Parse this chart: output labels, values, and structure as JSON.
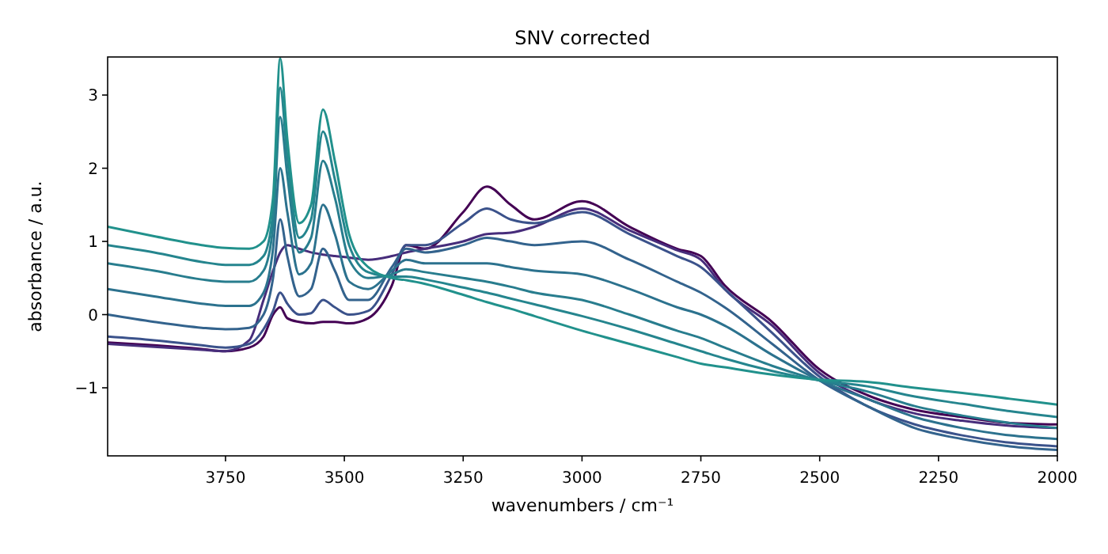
{
  "chart_data": {
    "type": "line",
    "title": "SNV corrected",
    "xlabel": "wavenumbers / cm⁻¹",
    "ylabel": "absorbance / a.u.",
    "x": [
      3998,
      3900,
      3800,
      3750,
      3700,
      3670,
      3650,
      3635,
      3620,
      3595,
      3570,
      3545,
      3520,
      3490,
      3450,
      3400,
      3370,
      3330,
      3250,
      3200,
      3150,
      3100,
      3000,
      2900,
      2800,
      2750,
      2700,
      2600,
      2500,
      2400,
      2300,
      2200,
      2100,
      2000
    ],
    "xlim": [
      3998,
      2000
    ],
    "xticks": [
      3750,
      3500,
      3250,
      3000,
      2750,
      2500,
      2250,
      2000
    ],
    "ylim": [
      -1.93,
      3.52
    ],
    "yticks": [
      {
        "value": -1,
        "label": "−1"
      },
      0,
      1,
      2,
      3
    ],
    "series": [
      {
        "color": "#440154",
        "values": [
          -0.38,
          -0.42,
          -0.47,
          -0.5,
          -0.45,
          -0.3,
          0.0,
          0.1,
          -0.05,
          -0.1,
          -0.12,
          -0.1,
          -0.1,
          -0.12,
          -0.05,
          0.4,
          0.95,
          0.9,
          1.4,
          1.75,
          1.5,
          1.3,
          1.55,
          1.2,
          0.9,
          0.8,
          0.4,
          -0.1,
          -0.75,
          -1.1,
          -1.3,
          -1.4,
          -1.48,
          -1.5
        ]
      },
      {
        "color": "#472d7b",
        "values": [
          -0.4,
          -0.44,
          -0.48,
          -0.5,
          -0.35,
          0.2,
          0.6,
          0.85,
          0.95,
          0.9,
          0.85,
          0.82,
          0.8,
          0.78,
          0.75,
          0.8,
          0.85,
          0.9,
          1.0,
          1.1,
          1.12,
          1.2,
          1.45,
          1.15,
          0.88,
          0.75,
          0.35,
          -0.15,
          -0.8,
          -1.15,
          -1.35,
          -1.45,
          -1.52,
          -1.55
        ]
      },
      {
        "color": "#3b528b",
        "values": [
          -0.3,
          -0.35,
          -0.42,
          -0.45,
          -0.4,
          -0.2,
          0.05,
          0.3,
          0.15,
          0.0,
          0.02,
          0.2,
          0.1,
          0.0,
          0.05,
          0.55,
          0.95,
          0.95,
          1.25,
          1.45,
          1.3,
          1.25,
          1.4,
          1.1,
          0.8,
          0.65,
          0.35,
          -0.25,
          -0.85,
          -1.25,
          -1.5,
          -1.65,
          -1.75,
          -1.8
        ]
      },
      {
        "color": "#33638d",
        "values": [
          0.0,
          -0.1,
          -0.18,
          -0.2,
          -0.18,
          0.0,
          0.5,
          1.3,
          0.8,
          0.25,
          0.35,
          0.9,
          0.6,
          0.2,
          0.2,
          0.65,
          0.9,
          0.85,
          0.95,
          1.05,
          1.0,
          0.95,
          1.0,
          0.75,
          0.45,
          0.3,
          0.1,
          -0.4,
          -0.9,
          -1.25,
          -1.55,
          -1.7,
          -1.8,
          -1.85
        ]
      },
      {
        "color": "#2c728e",
        "values": [
          0.35,
          0.25,
          0.15,
          0.12,
          0.12,
          0.3,
          0.9,
          2.0,
          1.4,
          0.55,
          0.7,
          1.5,
          1.1,
          0.45,
          0.35,
          0.6,
          0.75,
          0.7,
          0.7,
          0.7,
          0.65,
          0.6,
          0.55,
          0.35,
          0.1,
          0.0,
          -0.15,
          -0.55,
          -0.9,
          -1.15,
          -1.4,
          -1.55,
          -1.65,
          -1.7
        ]
      },
      {
        "color": "#287d8e",
        "values": [
          0.7,
          0.6,
          0.48,
          0.45,
          0.45,
          0.6,
          1.2,
          2.7,
          1.9,
          0.85,
          1.05,
          2.1,
          1.6,
          0.75,
          0.5,
          0.55,
          0.62,
          0.58,
          0.5,
          0.45,
          0.38,
          0.3,
          0.2,
          0.0,
          -0.22,
          -0.32,
          -0.45,
          -0.7,
          -0.9,
          -1.05,
          -1.25,
          -1.38,
          -1.48,
          -1.55
        ]
      },
      {
        "color": "#25858e",
        "values": [
          0.95,
          0.85,
          0.72,
          0.68,
          0.68,
          0.8,
          1.4,
          3.1,
          2.15,
          1.05,
          1.3,
          2.5,
          1.85,
          0.95,
          0.58,
          0.52,
          0.52,
          0.48,
          0.37,
          0.3,
          0.22,
          0.14,
          -0.02,
          -0.2,
          -0.4,
          -0.5,
          -0.6,
          -0.77,
          -0.9,
          -0.98,
          -1.12,
          -1.22,
          -1.32,
          -1.4
        ]
      },
      {
        "color": "#21918c",
        "values": [
          1.2,
          1.07,
          0.95,
          0.91,
          0.9,
          1.0,
          1.6,
          3.5,
          2.4,
          1.25,
          1.5,
          2.8,
          2.1,
          1.1,
          0.65,
          0.5,
          0.47,
          0.42,
          0.27,
          0.17,
          0.08,
          -0.02,
          -0.22,
          -0.4,
          -0.58,
          -0.67,
          -0.72,
          -0.82,
          -0.89,
          -0.92,
          -1.0,
          -1.07,
          -1.15,
          -1.23
        ]
      }
    ]
  }
}
